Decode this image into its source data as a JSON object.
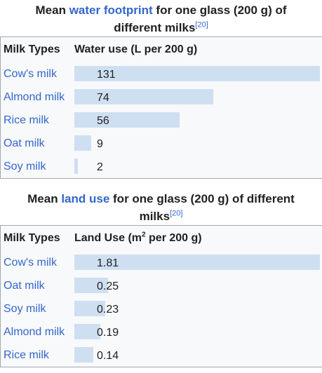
{
  "chart_data": [
    {
      "type": "table",
      "title_parts": {
        "prefix": "Mean ",
        "link": "water footprint",
        "suffix": " for one glass (200 g) of different milks",
        "ref": "[20]"
      },
      "columns": [
        "Milk Types",
        "Water use (L per 200 g)"
      ],
      "rows": [
        {
          "label": "Cow's milk",
          "value": 131,
          "display": "131"
        },
        {
          "label": "Almond milk",
          "value": 74,
          "display": "74"
        },
        {
          "label": "Rice milk",
          "value": 56,
          "display": "56"
        },
        {
          "label": "Oat milk",
          "value": 9,
          "display": "9"
        },
        {
          "label": "Soy milk",
          "value": 2,
          "display": "2"
        }
      ],
      "max": 131,
      "bar_color": "#cfdff2"
    },
    {
      "type": "table",
      "title_parts": {
        "prefix": "Mean ",
        "link": "land use",
        "suffix": " for one glass (200 g) of different milks",
        "ref": "[20]"
      },
      "columns": [
        "Milk Types",
        "Land Use (m",
        "2",
        " per 200 g)"
      ],
      "rows": [
        {
          "label": "Cow's milk",
          "value": 1.81,
          "display": "1.81"
        },
        {
          "label": "Oat milk",
          "value": 0.25,
          "display": "0.25"
        },
        {
          "label": "Soy milk",
          "value": 0.23,
          "display": "0.23"
        },
        {
          "label": "Almond milk",
          "value": 0.19,
          "display": "0.19"
        },
        {
          "label": "Rice milk",
          "value": 0.14,
          "display": "0.14"
        }
      ],
      "max": 1.81,
      "bar_color": "#cfdff2"
    }
  ]
}
